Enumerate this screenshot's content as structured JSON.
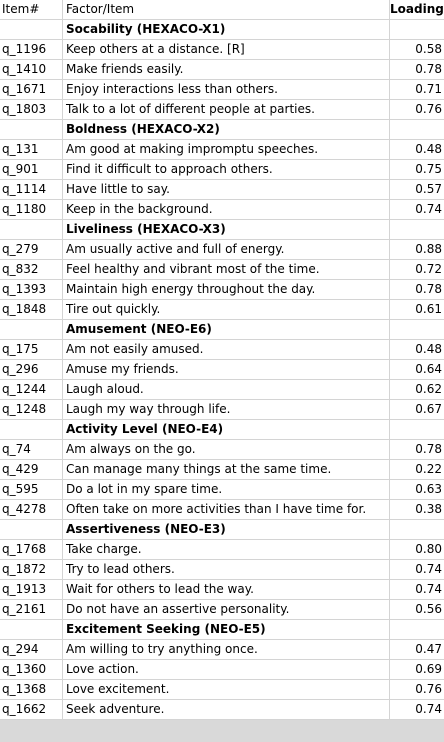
{
  "header": {
    "item": "Item#",
    "factor": "Factor/Item",
    "loading": "Loading"
  },
  "sections": [
    {
      "title": "Socability (HEXACO-X1)",
      "rows": [
        {
          "item": "q_1196",
          "text": "Keep others at a distance. [R]",
          "loading": "0.58"
        },
        {
          "item": "q_1410",
          "text": "Make friends easily.",
          "loading": "0.78"
        },
        {
          "item": "q_1671",
          "text": "Enjoy interactions less than others.",
          "loading": "0.71"
        },
        {
          "item": "q_1803",
          "text": "Talk to a lot of different people at parties.",
          "loading": "0.76"
        }
      ]
    },
    {
      "title": "Boldness (HEXACO-X2)",
      "rows": [
        {
          "item": "q_131",
          "text": "Am good at making impromptu speeches.",
          "loading": "0.48"
        },
        {
          "item": "q_901",
          "text": "Find it difficult to approach others.",
          "loading": "0.75"
        },
        {
          "item": "q_1114",
          "text": "Have little to say.",
          "loading": "0.57"
        },
        {
          "item": "q_1180",
          "text": "Keep in the background.",
          "loading": "0.74"
        }
      ]
    },
    {
      "title": "Liveliness (HEXACO-X3)",
      "rows": [
        {
          "item": "q_279",
          "text": "Am usually active and full of energy.",
          "loading": "0.88"
        },
        {
          "item": "q_832",
          "text": "Feel healthy and vibrant most of the time.",
          "loading": "0.72"
        },
        {
          "item": "q_1393",
          "text": "Maintain high energy throughout the day.",
          "loading": "0.78"
        },
        {
          "item": "q_1848",
          "text": "Tire out quickly.",
          "loading": "0.61"
        }
      ]
    },
    {
      "title": "Amusement (NEO-E6)",
      "rows": [
        {
          "item": "q_175",
          "text": "Am not easily amused.",
          "loading": "0.48"
        },
        {
          "item": "q_296",
          "text": "Amuse my friends.",
          "loading": "0.64"
        },
        {
          "item": "q_1244",
          "text": "Laugh aloud.",
          "loading": "0.62"
        },
        {
          "item": "q_1248",
          "text": "Laugh my way through life.",
          "loading": "0.67"
        }
      ]
    },
    {
      "title": "Activity Level (NEO-E4)",
      "rows": [
        {
          "item": "q_74",
          "text": "Am always on the go.",
          "loading": "0.78"
        },
        {
          "item": "q_429",
          "text": "Can manage many things at the same time.",
          "loading": "0.22"
        },
        {
          "item": "q_595",
          "text": "Do a lot in my spare time.",
          "loading": "0.63"
        },
        {
          "item": "q_4278",
          "text": "Often take on more activities than I have time for.",
          "loading": "0.38"
        }
      ]
    },
    {
      "title": "Assertiveness (NEO-E3)",
      "rows": [
        {
          "item": "q_1768",
          "text": "Take charge.",
          "loading": "0.80"
        },
        {
          "item": "q_1872",
          "text": "Try to lead others.",
          "loading": "0.74"
        },
        {
          "item": "q_1913",
          "text": "Wait for others to lead the way.",
          "loading": "0.74"
        },
        {
          "item": "q_2161",
          "text": "Do not have an assertive personality.",
          "loading": "0.56"
        }
      ]
    },
    {
      "title": "Excitement Seeking (NEO-E5)",
      "rows": [
        {
          "item": "q_294",
          "text": "Am willing to try anything once.",
          "loading": "0.47"
        },
        {
          "item": "q_1360",
          "text": "Love action.",
          "loading": "0.69"
        },
        {
          "item": "q_1368",
          "text": "Love excitement.",
          "loading": "0.76"
        },
        {
          "item": "q_1662",
          "text": "Seek adventure.",
          "loading": "0.74"
        }
      ]
    }
  ]
}
